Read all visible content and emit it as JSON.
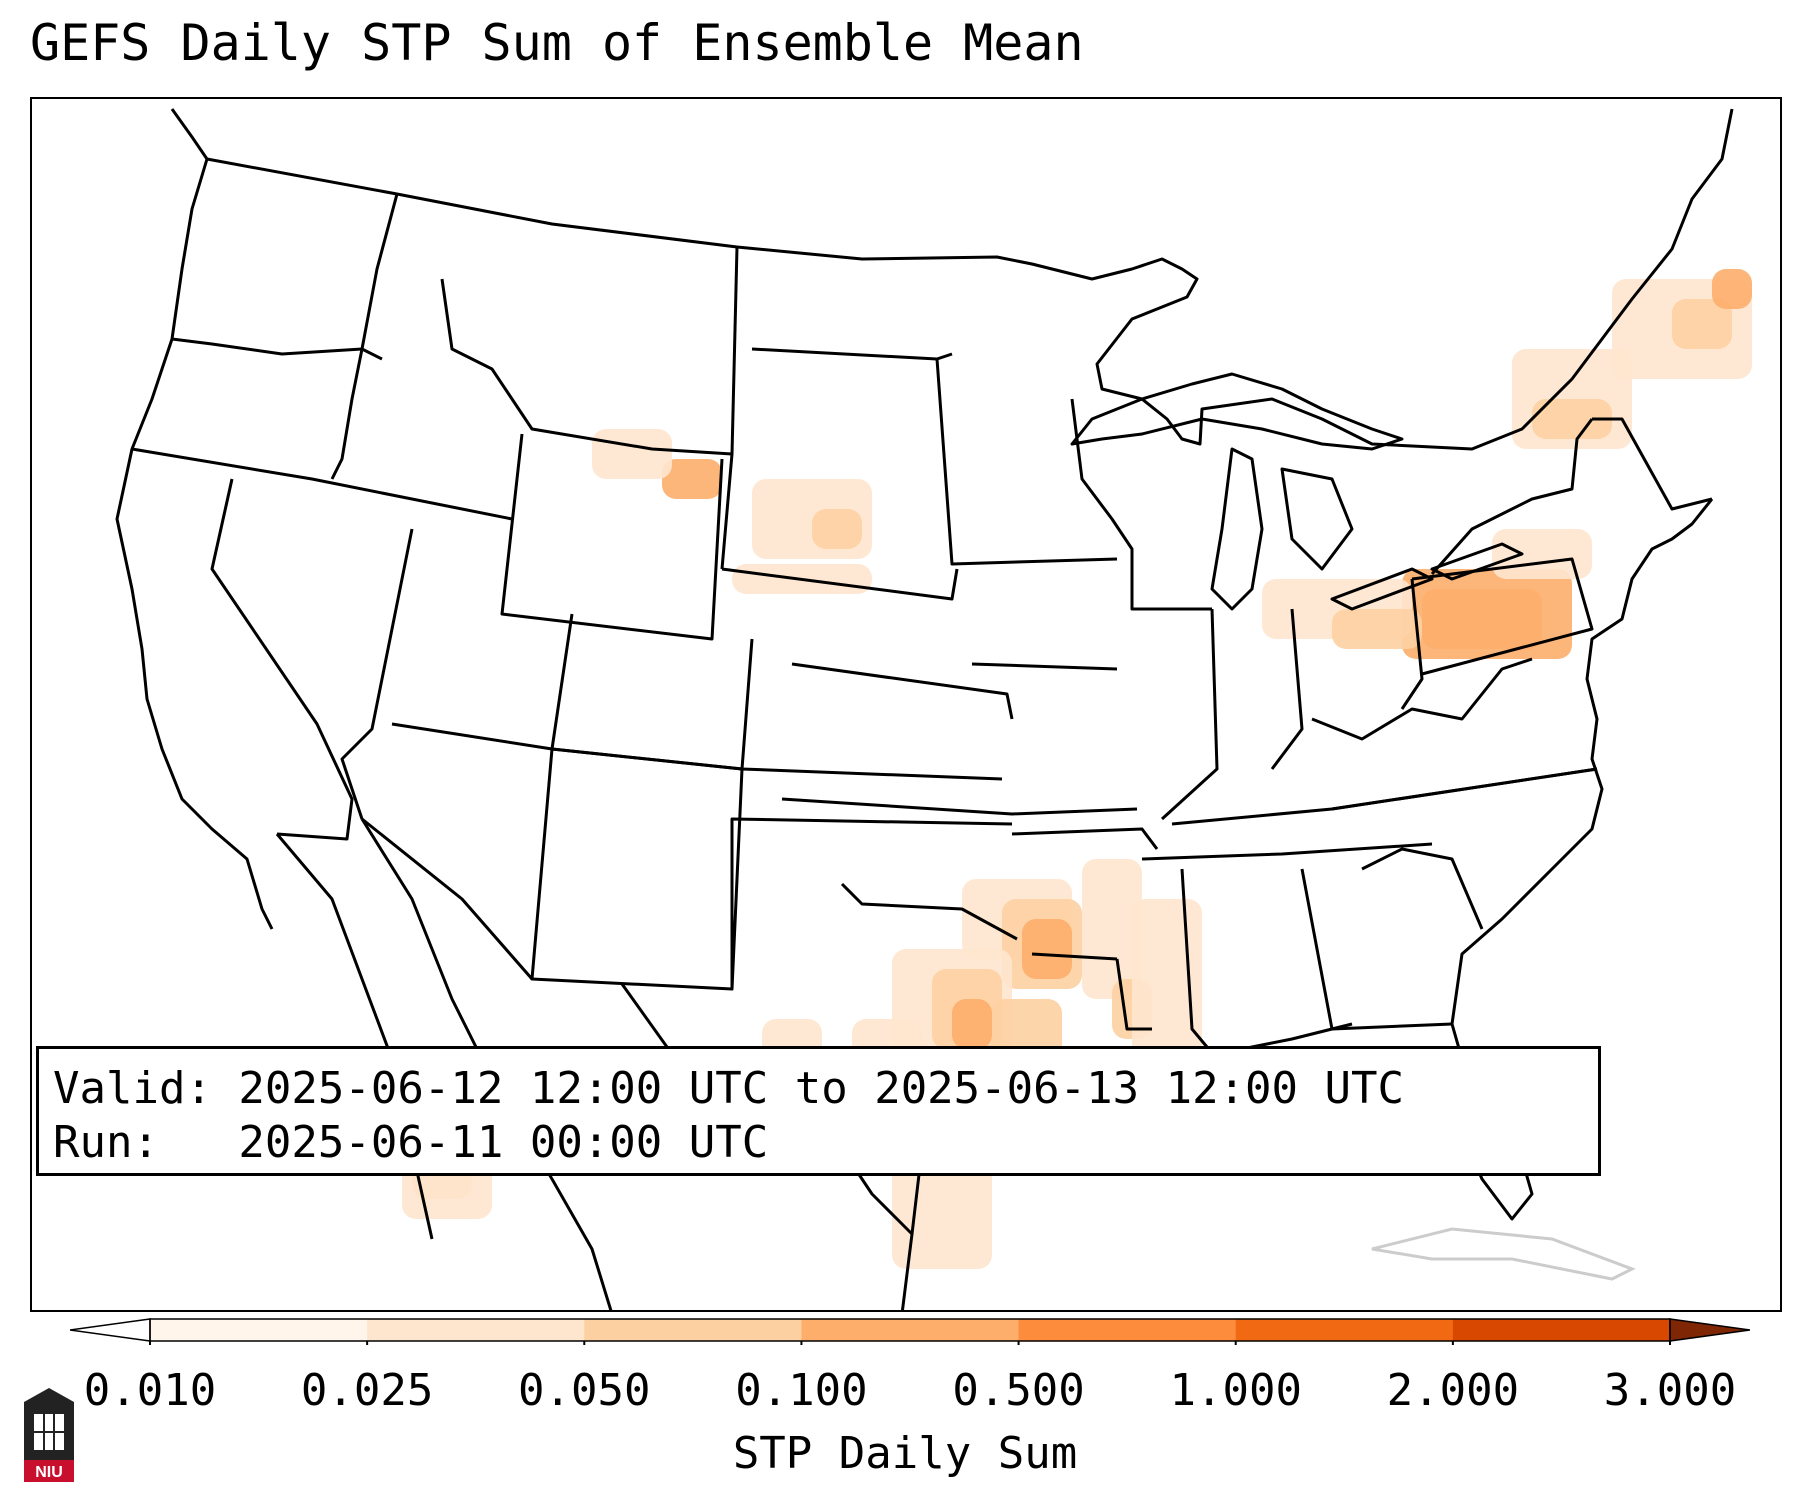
{
  "title": "GEFS Daily STP Sum of Ensemble Mean",
  "info": {
    "valid_line": "Valid: 2025-06-12 12:00 UTC to 2025-06-13 12:00 UTC",
    "run_line": "Run:   2025-06-11 00:00 UTC"
  },
  "colorbar": {
    "label": "STP Daily Sum",
    "ticks": [
      "0.010",
      "0.025",
      "0.050",
      "0.100",
      "0.500",
      "1.000",
      "2.000",
      "3.000"
    ],
    "colors": [
      "#fff5eb",
      "#fee6ce",
      "#fdd0a2",
      "#fdae6b",
      "#fd8d3c",
      "#f16913",
      "#d94801",
      "#a63603"
    ],
    "under_color": "#ffffff",
    "over_color": "#7f2704"
  },
  "logo": {
    "text": "NIU",
    "colors": {
      "red": "#c8102e",
      "dark": "#222222"
    }
  },
  "map": {
    "background": "#ffffff",
    "boundary_color": "#000000"
  }
}
